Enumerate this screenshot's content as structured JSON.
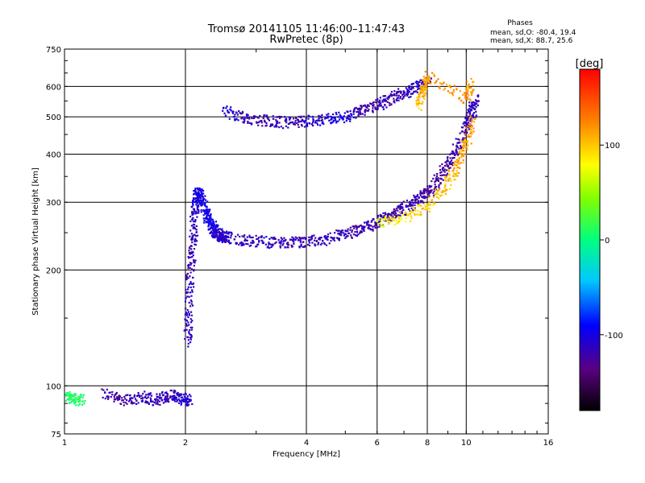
{
  "chart_data": {
    "type": "scatter",
    "title": "Tromsø 20141105 11:46:00–11:47:43",
    "subtitle": "RwPretec (8p)",
    "stats": {
      "heading": "Phases",
      "line_o": "mean, sd,O: -80.4, 19.4",
      "line_x": "mean, sd,X:  88.7, 25.6"
    },
    "xlabel": "Frequency [MHz]",
    "ylabel": "Stationary phase Virtual Height [km]",
    "x_scale": "log",
    "y_scale": "log",
    "xlim": [
      1,
      16
    ],
    "ylim": [
      75,
      750
    ],
    "x_ticks": [
      1,
      2,
      4,
      6,
      8,
      10,
      16
    ],
    "y_ticks": [
      75,
      100,
      200,
      300,
      400,
      500,
      600,
      750
    ],
    "grid": true,
    "colorbar": {
      "label": "[deg]",
      "range": [
        -180,
        180
      ],
      "ticks": [
        100,
        0,
        -100
      ]
    },
    "traces": [
      {
        "x": [
          1.0,
          1.05,
          1.1
        ],
        "y": [
          95,
          93,
          92
        ],
        "phase": [
          0,
          10,
          5
        ]
      },
      {
        "x": [
          1.25,
          1.4,
          1.55,
          1.7,
          1.85,
          1.95,
          2.05
        ],
        "y": [
          96,
          92,
          94,
          92,
          95,
          93,
          92
        ],
        "phase": [
          -120,
          -125,
          -110,
          -120,
          -115,
          -105,
          -110
        ]
      },
      {
        "x": [
          2.02,
          2.03,
          2.05,
          2.08,
          2.1,
          2.12,
          2.15,
          2.2,
          2.25,
          2.3,
          2.35,
          2.4,
          2.45,
          2.5
        ],
        "y": [
          130,
          160,
          200,
          240,
          280,
          310,
          320,
          300,
          280,
          265,
          255,
          250,
          245,
          245
        ],
        "phase": [
          -110,
          -112,
          -115,
          -118,
          -110,
          -105,
          -100,
          -100,
          -95,
          -100,
          -105,
          -110,
          -110,
          -112
        ]
      },
      {
        "x": [
          2.5,
          2.8,
          3.2,
          3.6,
          4.0,
          4.5,
          5.0,
          5.5,
          6.0,
          6.5,
          7.0,
          7.5,
          8.0,
          8.5,
          9.0,
          9.5,
          10.0,
          10.3,
          10.5
        ],
        "y": [
          245,
          240,
          237,
          237,
          238,
          242,
          250,
          258,
          268,
          278,
          290,
          305,
          320,
          345,
          380,
          420,
          480,
          520,
          560
        ],
        "phase": [
          -110,
          -115,
          -112,
          -118,
          -120,
          -115,
          -118,
          -120,
          -118,
          -120,
          -118,
          -120,
          -125,
          -125,
          -125,
          -120,
          -120,
          -110,
          -120
        ]
      },
      {
        "x": [
          6.0,
          7.0,
          8.0,
          9.0,
          9.5,
          10.0,
          10.3
        ],
        "y": [
          265,
          275,
          295,
          340,
          380,
          430,
          500
        ],
        "phase": [
          70,
          90,
          100,
          105,
          110,
          115,
          120
        ]
      },
      {
        "x": [
          2.5,
          2.8,
          3.2,
          3.6,
          4.0,
          4.5,
          5.0,
          5.5,
          6.0,
          6.5,
          7.0,
          7.5,
          8.0
        ],
        "y": [
          520,
          500,
          490,
          485,
          490,
          495,
          505,
          520,
          540,
          560,
          580,
          600,
          620
        ],
        "phase": [
          -100,
          -118,
          -120,
          -118,
          -110,
          -105,
          -100,
          -120,
          -118,
          -120,
          -115,
          -110,
          -112
        ]
      },
      {
        "x": [
          7.6,
          7.8,
          8.0,
          10.0,
          10.2
        ],
        "y": [
          540,
          600,
          640,
          560,
          620
        ],
        "phase": [
          100,
          110,
          115,
          120,
          110
        ]
      }
    ]
  }
}
